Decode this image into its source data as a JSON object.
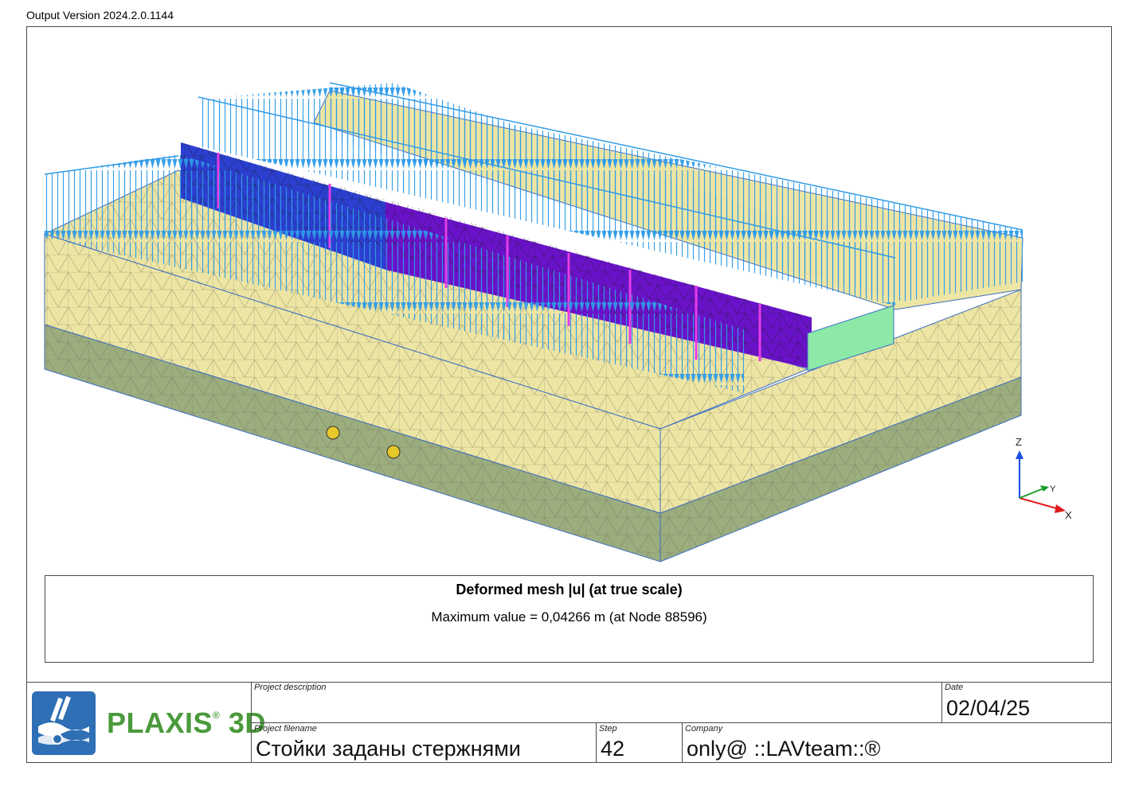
{
  "header": {
    "version": "Output Version 2024.2.0.1144"
  },
  "plot": {
    "title": "Deformed mesh |u| (at true scale)",
    "max_value": "Maximum value = 0,04266 m (at Node 88596)",
    "axes": {
      "z": "Z",
      "y": "Y",
      "x": "X"
    },
    "colors": {
      "soil_upper": "#ede5a3",
      "soil_lower": "#9cad7e",
      "load_arrows": "#2f9be8",
      "wall_blue": "#2b3fd0",
      "wall_purple": "#6a12c9",
      "wall_magenta": "#e73ce8",
      "slab_green": "#8ce9a8"
    }
  },
  "title_block": {
    "logo": {
      "brand": "PLAXIS",
      "mark": "®",
      "suffix": "3D"
    },
    "project_description": {
      "label": "Project description",
      "value": ""
    },
    "date": {
      "label": "Date",
      "value": "02/04/25"
    },
    "project_filename": {
      "label": "Project filename",
      "value": "Стойки заданы стержнями"
    },
    "step": {
      "label": "Step",
      "value": "42"
    },
    "company": {
      "label": "Company",
      "value": "only@ ::LAVteam::®"
    }
  }
}
